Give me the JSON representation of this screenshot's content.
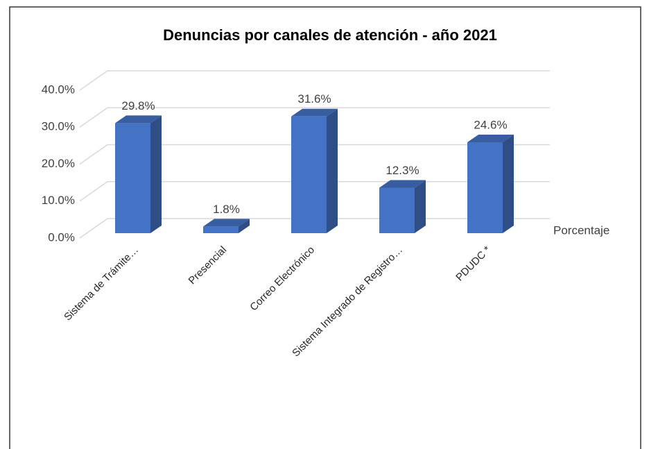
{
  "chart_data": {
    "type": "bar3d",
    "title": "Denuncias por canales de atención - año 2021",
    "categories": [
      "Sistema de Trámite…",
      "Presencial",
      "Correo Electrónico",
      "Sistema Integrado de Registro…",
      "PDUDC *"
    ],
    "series": [
      {
        "name": "Porcentaje",
        "color": "#4472c4",
        "values": [
          29.8,
          1.8,
          31.6,
          12.3,
          24.6
        ],
        "value_labels": [
          "29.8%",
          "1.8%",
          "31.6%",
          "12.3%",
          "24.6%"
        ]
      }
    ],
    "ylim": [
      0,
      40
    ],
    "yticks": [
      {
        "value": 0,
        "label": "0.0%"
      },
      {
        "value": 10,
        "label": "10.0%"
      },
      {
        "value": 20,
        "label": "20.0%"
      },
      {
        "value": 30,
        "label": "30.0%"
      },
      {
        "value": 40,
        "label": "40.0%"
      }
    ],
    "grid": true,
    "legend": "right"
  }
}
